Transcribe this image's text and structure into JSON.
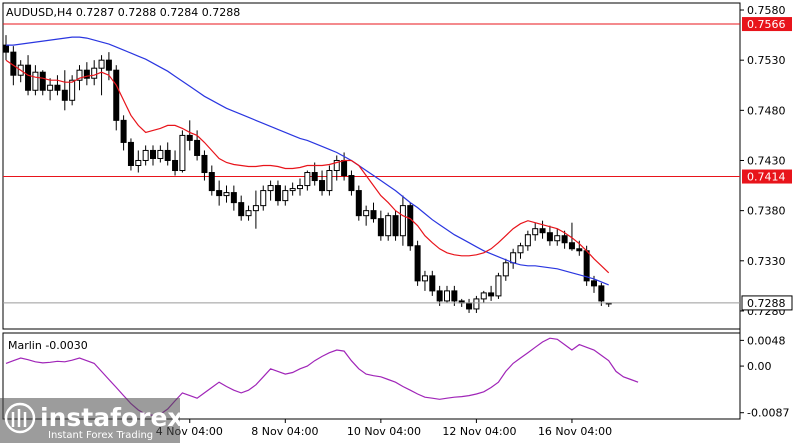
{
  "header": {
    "title": "AUDUSD,H4  0.7287 0.7288 0.7284 0.7288"
  },
  "indicator": {
    "title": "Marlin -0.0030"
  },
  "watermark": {
    "brand": "instaforex",
    "tagline": "Instant Forex Trading"
  },
  "colors": {
    "candle": "#000000",
    "ma_fast": "#e8141b",
    "ma_slow": "#2a36e0",
    "levels": "#e8141b",
    "oscillator": "#a025b8",
    "label_bg": "#e8141b",
    "label_text": "#ffffff"
  },
  "chart_data": [
    {
      "type": "candlestick",
      "symbol": "AUDUSD",
      "timeframe": "H4",
      "ylim": [
        0.7264,
        0.7585
      ],
      "y_ticks": [
        "0.7580",
        "0.7530",
        "0.7480",
        "0.7430",
        "0.7380",
        "0.7330",
        "0.7280"
      ],
      "x_ticks": [
        "4 Nov 04:00",
        "8 Nov 04:00",
        "10 Nov 04:00",
        "12 Nov 04:00",
        "16 Nov 04:00"
      ],
      "horizontal_levels": [
        {
          "value": 0.7566,
          "label": "0.7566"
        },
        {
          "value": 0.7414,
          "label": "0.7414"
        }
      ],
      "last_price": {
        "value": 0.7288,
        "label": "0.7288"
      },
      "candles": [
        [
          0.7545,
          0.7555,
          0.753,
          0.7538
        ],
        [
          0.7538,
          0.7544,
          0.7505,
          0.7515
        ],
        [
          0.7515,
          0.753,
          0.7508,
          0.7525
        ],
        [
          0.7525,
          0.7535,
          0.7495,
          0.75
        ],
        [
          0.75,
          0.7525,
          0.7495,
          0.7518
        ],
        [
          0.7518,
          0.752,
          0.7495,
          0.75
        ],
        [
          0.75,
          0.7512,
          0.749,
          0.7505
        ],
        [
          0.7505,
          0.7515,
          0.7495,
          0.75
        ],
        [
          0.75,
          0.752,
          0.748,
          0.749
        ],
        [
          0.749,
          0.7515,
          0.7485,
          0.751
        ],
        [
          0.751,
          0.7525,
          0.75,
          0.752
        ],
        [
          0.752,
          0.7528,
          0.7505,
          0.7512
        ],
        [
          0.7512,
          0.753,
          0.7505,
          0.7522
        ],
        [
          0.7522,
          0.7535,
          0.7495,
          0.753
        ],
        [
          0.753,
          0.7538,
          0.751,
          0.752
        ],
        [
          0.752,
          0.7525,
          0.746,
          0.747
        ],
        [
          0.747,
          0.7475,
          0.744,
          0.7448
        ],
        [
          0.7448,
          0.7452,
          0.742,
          0.7425
        ],
        [
          0.7425,
          0.744,
          0.7418,
          0.743
        ],
        [
          0.743,
          0.7445,
          0.7425,
          0.744
        ],
        [
          0.744,
          0.7445,
          0.7425,
          0.7432
        ],
        [
          0.7432,
          0.7445,
          0.7428,
          0.744
        ],
        [
          0.744,
          0.7448,
          0.7425,
          0.743
        ],
        [
          0.743,
          0.744,
          0.7415,
          0.742
        ],
        [
          0.742,
          0.746,
          0.7418,
          0.7455
        ],
        [
          0.7455,
          0.747,
          0.744,
          0.745
        ],
        [
          0.745,
          0.746,
          0.743,
          0.7435
        ],
        [
          0.7435,
          0.744,
          0.741,
          0.7418
        ],
        [
          0.7418,
          0.7425,
          0.7395,
          0.74
        ],
        [
          0.74,
          0.741,
          0.7385,
          0.7395
        ],
        [
          0.7395,
          0.7405,
          0.7388,
          0.7398
        ],
        [
          0.7398,
          0.7405,
          0.738,
          0.7388
        ],
        [
          0.7388,
          0.7395,
          0.737,
          0.7375
        ],
        [
          0.7375,
          0.7385,
          0.737,
          0.738
        ],
        [
          0.738,
          0.74,
          0.7362,
          0.7385
        ],
        [
          0.7385,
          0.7405,
          0.738,
          0.74
        ],
        [
          0.74,
          0.741,
          0.739,
          0.7405
        ],
        [
          0.7405,
          0.741,
          0.7385,
          0.739
        ],
        [
          0.739,
          0.7405,
          0.7385,
          0.74
        ],
        [
          0.74,
          0.7408,
          0.7395,
          0.7402
        ],
        [
          0.7402,
          0.7412,
          0.7395,
          0.7405
        ],
        [
          0.7405,
          0.742,
          0.74,
          0.7418
        ],
        [
          0.7418,
          0.7428,
          0.7405,
          0.741
        ],
        [
          0.741,
          0.742,
          0.7395,
          0.74
        ],
        [
          0.74,
          0.7425,
          0.7395,
          0.742
        ],
        [
          0.742,
          0.7435,
          0.741,
          0.743
        ],
        [
          0.743,
          0.7438,
          0.741,
          0.7415
        ],
        [
          0.7415,
          0.742,
          0.7395,
          0.74
        ],
        [
          0.74,
          0.7405,
          0.737,
          0.7375
        ],
        [
          0.7375,
          0.7385,
          0.7365,
          0.738
        ],
        [
          0.738,
          0.7388,
          0.7368,
          0.7372
        ],
        [
          0.7372,
          0.738,
          0.735,
          0.7355
        ],
        [
          0.7355,
          0.7378,
          0.735,
          0.7375
        ],
        [
          0.7375,
          0.738,
          0.735,
          0.7355
        ],
        [
          0.7355,
          0.7395,
          0.7345,
          0.7385
        ],
        [
          0.7385,
          0.7388,
          0.734,
          0.7345
        ],
        [
          0.7345,
          0.735,
          0.7305,
          0.731
        ],
        [
          0.731,
          0.732,
          0.73,
          0.7315
        ],
        [
          0.7315,
          0.732,
          0.7295,
          0.73
        ],
        [
          0.73,
          0.7305,
          0.7285,
          0.729
        ],
        [
          0.729,
          0.7305,
          0.7288,
          0.73
        ],
        [
          0.73,
          0.7305,
          0.7285,
          0.729
        ],
        [
          0.729,
          0.7292,
          0.7284,
          0.7288
        ],
        [
          0.7288,
          0.7292,
          0.7278,
          0.7282
        ],
        [
          0.7282,
          0.7295,
          0.7278,
          0.7292
        ],
        [
          0.7292,
          0.73,
          0.7288,
          0.7298
        ],
        [
          0.7298,
          0.7305,
          0.729,
          0.7295
        ],
        [
          0.7295,
          0.7318,
          0.7292,
          0.7315
        ],
        [
          0.7315,
          0.7332,
          0.731,
          0.7328
        ],
        [
          0.7328,
          0.7342,
          0.7322,
          0.7338
        ],
        [
          0.7338,
          0.7348,
          0.7332,
          0.7345
        ],
        [
          0.7345,
          0.736,
          0.734,
          0.7356
        ],
        [
          0.7356,
          0.7368,
          0.735,
          0.7362
        ],
        [
          0.7362,
          0.737,
          0.7352,
          0.7358
        ],
        [
          0.7358,
          0.7365,
          0.7345,
          0.735
        ],
        [
          0.735,
          0.7362,
          0.7345,
          0.7355
        ],
        [
          0.7355,
          0.736,
          0.7342,
          0.7348
        ],
        [
          0.7348,
          0.7368,
          0.734,
          0.7342
        ],
        [
          0.7342,
          0.735,
          0.7335,
          0.734
        ],
        [
          0.734,
          0.7345,
          0.7305,
          0.731
        ],
        [
          0.731,
          0.7315,
          0.7298,
          0.7305
        ],
        [
          0.7305,
          0.7308,
          0.7285,
          0.729
        ],
        [
          0.7287,
          0.7288,
          0.7284,
          0.7288
        ]
      ],
      "ma_fast": [
        0.753,
        0.7525,
        0.752,
        0.7515,
        0.7513,
        0.7512,
        0.751,
        0.751,
        0.7508,
        0.7508,
        0.7512,
        0.7514,
        0.7515,
        0.7518,
        0.7515,
        0.7505,
        0.749,
        0.7475,
        0.7465,
        0.7458,
        0.746,
        0.7462,
        0.7465,
        0.7465,
        0.7462,
        0.7458,
        0.7455,
        0.7448,
        0.744,
        0.7432,
        0.7428,
        0.7426,
        0.7425,
        0.7424,
        0.7424,
        0.7425,
        0.7425,
        0.7424,
        0.7422,
        0.7422,
        0.7423,
        0.7425,
        0.7425,
        0.7425,
        0.7426,
        0.7428,
        0.743,
        0.743,
        0.7425,
        0.7415,
        0.7405,
        0.7395,
        0.7388,
        0.738,
        0.7375,
        0.7372,
        0.7365,
        0.7355,
        0.7348,
        0.7342,
        0.7338,
        0.7336,
        0.7335,
        0.7335,
        0.7336,
        0.7338,
        0.7342,
        0.7348,
        0.7355,
        0.7362,
        0.7367,
        0.737,
        0.7368,
        0.7366,
        0.7364,
        0.7362,
        0.7358,
        0.7353,
        0.7347,
        0.734,
        0.7332,
        0.7325,
        0.7318
      ],
      "ma_slow": [
        0.7545,
        0.7545,
        0.7546,
        0.7547,
        0.7548,
        0.7549,
        0.755,
        0.7551,
        0.7552,
        0.7553,
        0.7553,
        0.7552,
        0.755,
        0.7548,
        0.7546,
        0.7543,
        0.754,
        0.7537,
        0.7534,
        0.7531,
        0.7527,
        0.7523,
        0.7519,
        0.7514,
        0.7509,
        0.7504,
        0.7499,
        0.7494,
        0.749,
        0.7486,
        0.7482,
        0.7479,
        0.7476,
        0.7473,
        0.747,
        0.7467,
        0.7464,
        0.7461,
        0.7458,
        0.7455,
        0.7452,
        0.745,
        0.7447,
        0.7444,
        0.7441,
        0.7438,
        0.7434,
        0.743,
        0.7425,
        0.742,
        0.7415,
        0.741,
        0.7405,
        0.74,
        0.7394,
        0.7388,
        0.7383,
        0.7377,
        0.7371,
        0.7366,
        0.7361,
        0.7356,
        0.7352,
        0.7348,
        0.7344,
        0.734,
        0.7337,
        0.7334,
        0.7331,
        0.7328,
        0.7326,
        0.7325,
        0.7325,
        0.7324,
        0.7323,
        0.7322,
        0.732,
        0.7318,
        0.7316,
        0.7314,
        0.7312,
        0.7309,
        0.7306
      ]
    },
    {
      "type": "line",
      "name": "Marlin",
      "ylim": [
        -0.0095,
        0.0058
      ],
      "y_ticks": [
        "0.0048",
        "0.00",
        "-0.0087"
      ],
      "values": [
        0.0005,
        0.001,
        0.0015,
        0.0012,
        0.0008,
        0.0006,
        0.0007,
        0.0009,
        0.0008,
        0.0011,
        0.0015,
        0.001,
        0.0005,
        -0.001,
        -0.0025,
        -0.004,
        -0.0055,
        -0.007,
        -0.0082,
        -0.009,
        -0.0092,
        -0.009,
        -0.008,
        -0.0065,
        -0.005,
        -0.0055,
        -0.006,
        -0.005,
        -0.004,
        -0.003,
        -0.0038,
        -0.0045,
        -0.005,
        -0.0045,
        -0.0035,
        -0.002,
        -0.0005,
        -0.001,
        -0.0015,
        -0.0012,
        -0.0005,
        0.0,
        0.001,
        0.0018,
        0.0025,
        0.003,
        0.0028,
        0.001,
        -0.0005,
        -0.0015,
        -0.0018,
        -0.002,
        -0.0025,
        -0.003,
        -0.0038,
        -0.0045,
        -0.0052,
        -0.0058,
        -0.006,
        -0.0062,
        -0.006,
        -0.0058,
        -0.0057,
        -0.0055,
        -0.0052,
        -0.0048,
        -0.004,
        -0.003,
        -0.001,
        0.0005,
        0.0015,
        0.0025,
        0.0035,
        0.0045,
        0.0052,
        0.005,
        0.004,
        0.003,
        0.004,
        0.0035,
        0.003,
        0.002,
        0.001,
        -0.001,
        -0.002,
        -0.0025,
        -0.003
      ]
    }
  ]
}
